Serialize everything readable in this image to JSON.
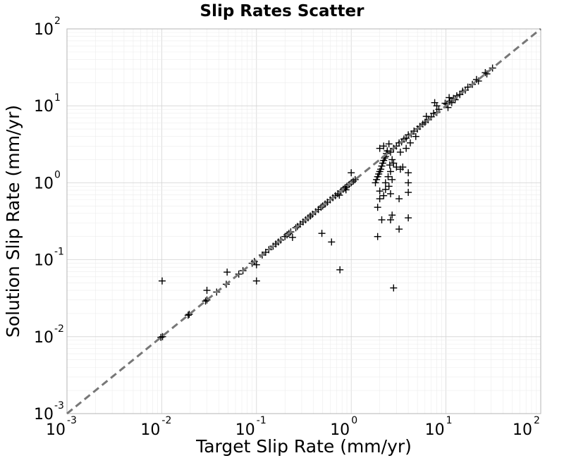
{
  "chart_data": {
    "type": "scatter",
    "title": "Slip Rates Scatter",
    "xlabel": "Target Slip Rate (mm/yr)",
    "ylabel": "Solution Slip Rate (mm/yr)",
    "xscale": "log",
    "yscale": "log",
    "xlim": [
      0.001,
      100
    ],
    "ylim": [
      0.001,
      100
    ],
    "grid": true,
    "reference_line": "y = x (dashed gray)",
    "marker": "+",
    "marker_color": "#000000",
    "x_ticks": [
      {
        "base": "10",
        "exp": "-3"
      },
      {
        "base": "10",
        "exp": "-2"
      },
      {
        "base": "10",
        "exp": "-1"
      },
      {
        "base": "10",
        "exp": "0"
      },
      {
        "base": "10",
        "exp": "1"
      },
      {
        "base": "10",
        "exp": "2"
      }
    ],
    "y_ticks": [
      {
        "base": "10",
        "exp": "-3"
      },
      {
        "base": "10",
        "exp": "-2"
      },
      {
        "base": "10",
        "exp": "-1"
      },
      {
        "base": "10",
        "exp": "0"
      },
      {
        "base": "10",
        "exp": "1"
      },
      {
        "base": "10",
        "exp": "2"
      }
    ],
    "points": [
      [
        0.0098,
        0.0098
      ],
      [
        0.0102,
        0.01
      ],
      [
        0.0101,
        0.053
      ],
      [
        0.019,
        0.019
      ],
      [
        0.0195,
        0.0195
      ],
      [
        0.029,
        0.029
      ],
      [
        0.03,
        0.03
      ],
      [
        0.03,
        0.04
      ],
      [
        0.038,
        0.038
      ],
      [
        0.048,
        0.048
      ],
      [
        0.049,
        0.069
      ],
      [
        0.065,
        0.065
      ],
      [
        0.072,
        0.072
      ],
      [
        0.09,
        0.09
      ],
      [
        0.095,
        0.095
      ],
      [
        0.1,
        0.086
      ],
      [
        0.1,
        0.053
      ],
      [
        0.115,
        0.115
      ],
      [
        0.125,
        0.125
      ],
      [
        0.135,
        0.135
      ],
      [
        0.15,
        0.15
      ],
      [
        0.16,
        0.16
      ],
      [
        0.17,
        0.17
      ],
      [
        0.18,
        0.18
      ],
      [
        0.2,
        0.2
      ],
      [
        0.21,
        0.21
      ],
      [
        0.22,
        0.22
      ],
      [
        0.23,
        0.23
      ],
      [
        0.24,
        0.195
      ],
      [
        0.26,
        0.26
      ],
      [
        0.27,
        0.27
      ],
      [
        0.29,
        0.29
      ],
      [
        0.31,
        0.31
      ],
      [
        0.33,
        0.33
      ],
      [
        0.35,
        0.35
      ],
      [
        0.37,
        0.37
      ],
      [
        0.39,
        0.39
      ],
      [
        0.42,
        0.42
      ],
      [
        0.45,
        0.45
      ],
      [
        0.48,
        0.48
      ],
      [
        0.5,
        0.5
      ],
      [
        0.53,
        0.53
      ],
      [
        0.56,
        0.56
      ],
      [
        0.6,
        0.6
      ],
      [
        0.64,
        0.64
      ],
      [
        0.68,
        0.68
      ],
      [
        0.72,
        0.72
      ],
      [
        0.75,
        0.69
      ],
      [
        0.78,
        0.78
      ],
      [
        0.82,
        0.82
      ],
      [
        0.86,
        0.86
      ],
      [
        0.9,
        0.9
      ],
      [
        0.95,
        0.95
      ],
      [
        0.88,
        0.81
      ],
      [
        1.0,
        1.0
      ],
      [
        1.05,
        1.05
      ],
      [
        1.1,
        1.1
      ],
      [
        1.0,
        1.35
      ],
      [
        0.49,
        0.22
      ],
      [
        0.62,
        0.17
      ],
      [
        0.76,
        0.074
      ],
      [
        1.9,
        0.2
      ],
      [
        2.1,
        0.33
      ],
      [
        2.6,
        0.33
      ],
      [
        2.7,
        0.38
      ],
      [
        3.2,
        0.25
      ],
      [
        2.8,
        0.043
      ],
      [
        4.0,
        0.35
      ],
      [
        1.9,
        0.48
      ],
      [
        2.0,
        0.62
      ],
      [
        2.2,
        0.68
      ],
      [
        2.0,
        0.78
      ],
      [
        2.3,
        0.82
      ],
      [
        2.6,
        0.72
      ],
      [
        3.2,
        0.62
      ],
      [
        4.0,
        0.75
      ],
      [
        1.8,
        1.0
      ],
      [
        1.85,
        1.1
      ],
      [
        1.9,
        1.2
      ],
      [
        1.95,
        1.3
      ],
      [
        2.0,
        1.4
      ],
      [
        2.05,
        1.5
      ],
      [
        2.1,
        1.65
      ],
      [
        2.15,
        1.8
      ],
      [
        2.2,
        1.95
      ],
      [
        2.25,
        2.1
      ],
      [
        2.3,
        2.2
      ],
      [
        2.35,
        2.4
      ],
      [
        2.4,
        2.6
      ],
      [
        2.45,
        1.2
      ],
      [
        2.5,
        0.9
      ],
      [
        2.55,
        1.7
      ],
      [
        2.6,
        1.4
      ],
      [
        2.7,
        2.0
      ],
      [
        2.8,
        1.8
      ],
      [
        3.0,
        1.6
      ],
      [
        3.3,
        1.5
      ],
      [
        3.5,
        1.6
      ],
      [
        4.0,
        1.0
      ],
      [
        4.0,
        1.35
      ],
      [
        2.3,
        1.0
      ],
      [
        2.7,
        1.1
      ],
      [
        2.0,
        2.8
      ],
      [
        2.2,
        3.0
      ],
      [
        2.5,
        3.2
      ],
      [
        2.6,
        2.5
      ],
      [
        2.8,
        2.8
      ],
      [
        3.0,
        3.0
      ],
      [
        3.2,
        3.3
      ],
      [
        3.4,
        3.4
      ],
      [
        3.6,
        3.7
      ],
      [
        3.8,
        3.8
      ],
      [
        4.0,
        4.2
      ],
      [
        4.3,
        4.3
      ],
      [
        4.6,
        4.7
      ],
      [
        5.0,
        5.0
      ],
      [
        5.3,
        5.4
      ],
      [
        5.7,
        5.8
      ],
      [
        6.0,
        6.1
      ],
      [
        6.5,
        6.6
      ],
      [
        7.0,
        7.2
      ],
      [
        4.2,
        3.3
      ],
      [
        4.8,
        4.0
      ],
      [
        3.3,
        2.5
      ],
      [
        3.8,
        2.8
      ],
      [
        6.2,
        7.3
      ],
      [
        7.4,
        8.0
      ],
      [
        8.0,
        8.2
      ],
      [
        8.4,
        9.0
      ],
      [
        8.0,
        10.0
      ],
      [
        7.6,
        11.0
      ],
      [
        10.2,
        10.5
      ],
      [
        10.5,
        9.5
      ],
      [
        11.0,
        11.5
      ],
      [
        11.5,
        11.0
      ],
      [
        12.0,
        12.5
      ],
      [
        12.5,
        12.0
      ],
      [
        13.0,
        13.5
      ],
      [
        14.0,
        14.0
      ],
      [
        15.0,
        15.5
      ],
      [
        16.0,
        16.0
      ],
      [
        17.0,
        17.5
      ],
      [
        19.0,
        19.0
      ],
      [
        21.0,
        22.0
      ],
      [
        22.0,
        21.0
      ],
      [
        26.0,
        27.0
      ],
      [
        27.0,
        26.0
      ],
      [
        31.0,
        31.0
      ],
      [
        10.8,
        12.8
      ],
      [
        9.8,
        10.8
      ]
    ]
  }
}
